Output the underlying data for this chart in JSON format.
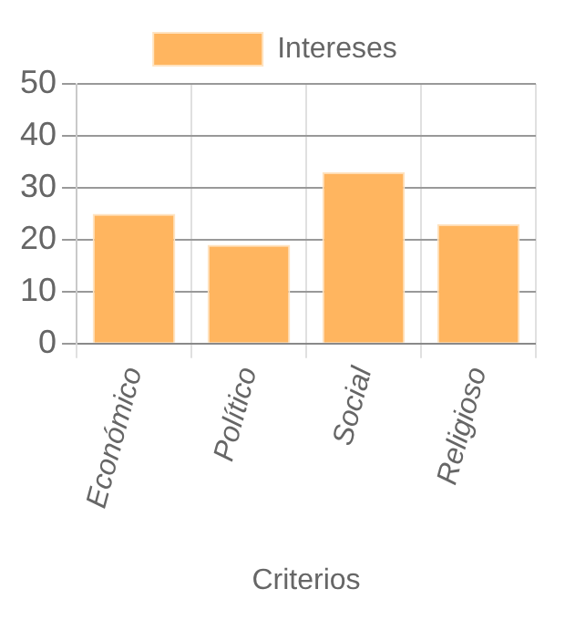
{
  "chart_data": {
    "type": "bar",
    "xlabel": "Criterios",
    "categories": [
      "Económico",
      "Político",
      "Social",
      "Religioso"
    ],
    "series": [
      {
        "name": "Intereses",
        "color": "#ffb55f",
        "values": [
          25,
          19,
          33,
          23
        ]
      }
    ],
    "ylim": [
      0,
      50
    ],
    "yticks": [
      0,
      10,
      20,
      30,
      40,
      50
    ],
    "grid": true,
    "legend": "top"
  }
}
